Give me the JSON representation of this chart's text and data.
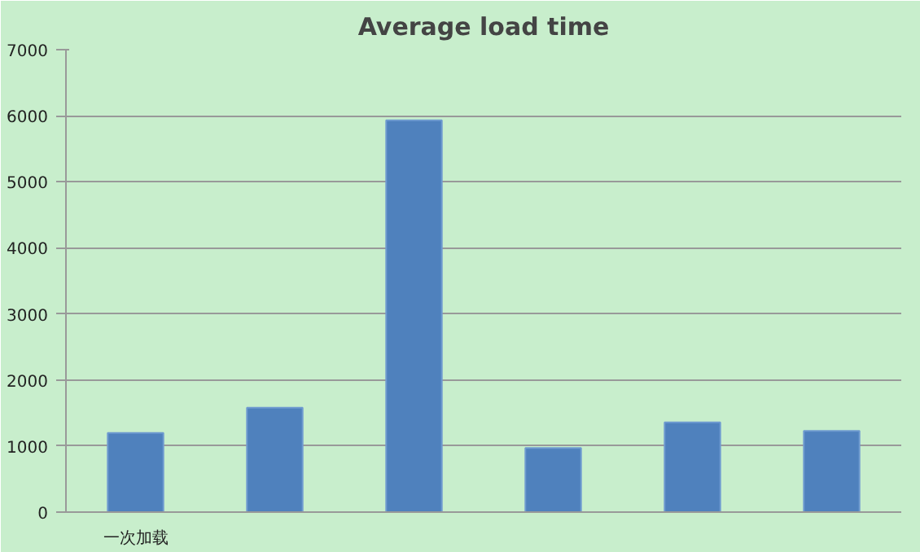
{
  "chart_data": {
    "type": "bar",
    "title": "Average load time",
    "categories": [
      "一次加载",
      null,
      null,
      null,
      null,
      null
    ],
    "values": [
      1200,
      1580,
      5930,
      970,
      1360,
      1230
    ],
    "color": "#4f81bd",
    "ylim": [
      0,
      7000
    ],
    "yticks": [
      0,
      1000,
      2000,
      3000,
      4000,
      5000,
      6000,
      7000
    ],
    "grid": "y"
  }
}
